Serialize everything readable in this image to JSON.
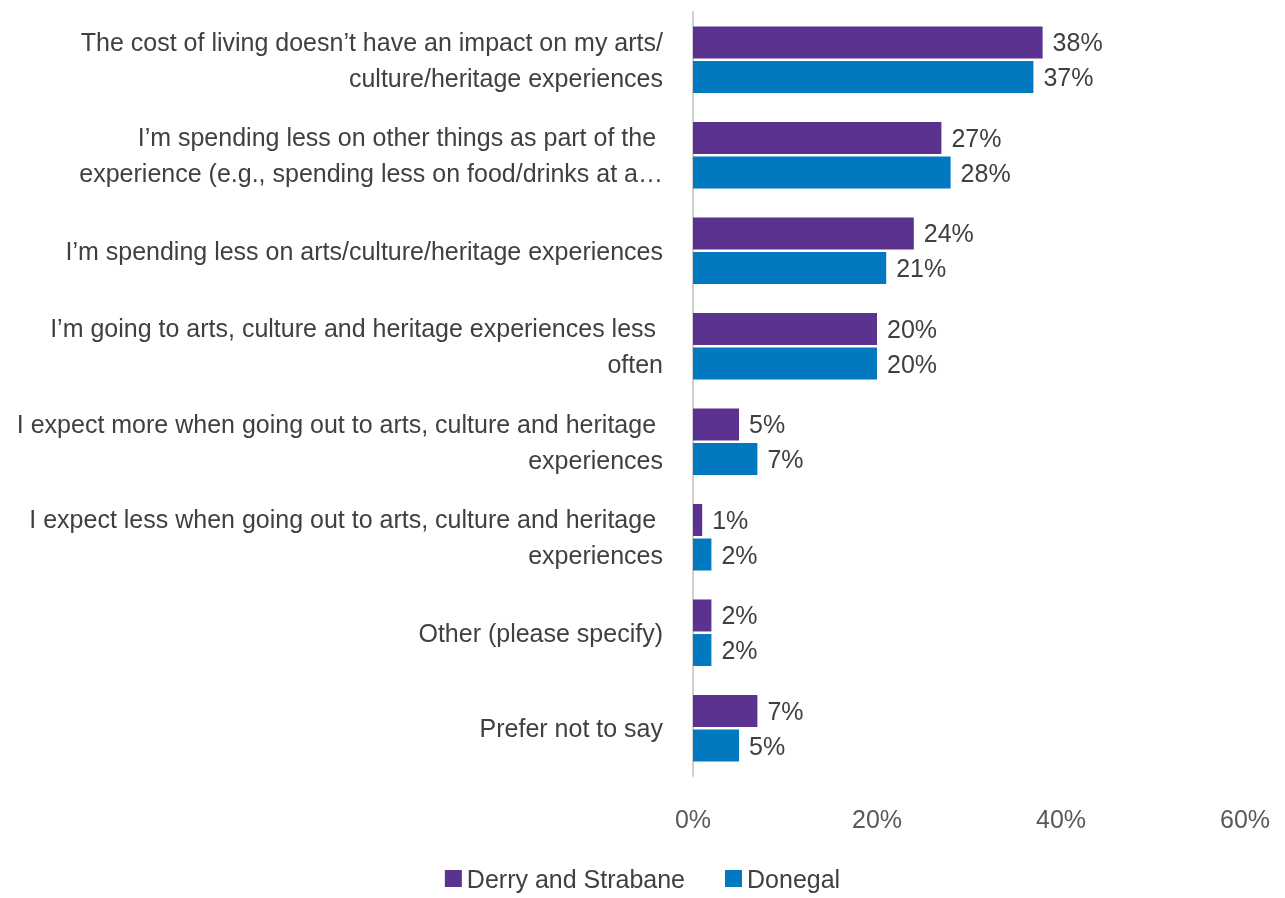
{
  "chart_data": {
    "type": "bar",
    "orientation": "horizontal",
    "categories": [
      "The cost of living doesn’t have an impact on my arts/culture/heritage experiences",
      "I’m spending less on other things as part of the experience (e.g., spending less on food/drinks at a…",
      "I’m spending less on arts/culture/heritage experiences",
      "I’m going to arts, culture and heritage experiences less often",
      "I expect more when going out to arts, culture and heritage experiences",
      "I expect less when going out to arts, culture and heritage experiences",
      "Other (please specify)",
      "Prefer not to say"
    ],
    "series": [
      {
        "name": "Derry and Strabane",
        "color": "#5b3290",
        "values": [
          38,
          27,
          24,
          20,
          5,
          1,
          2,
          7
        ],
        "value_labels": [
          "38%",
          "27%",
          "24%",
          "20%",
          "5%",
          "1%",
          "2%",
          "7%"
        ]
      },
      {
        "name": "Donegal",
        "color": "#0079c1",
        "values": [
          37,
          28,
          21,
          20,
          7,
          2,
          2,
          5
        ],
        "value_labels": [
          "37%",
          "28%",
          "21%",
          "20%",
          "7%",
          "2%",
          "2%",
          "5%"
        ]
      }
    ],
    "xlim": [
      0,
      60
    ],
    "xticks": [
      {
        "value": 0,
        "label": "0%"
      },
      {
        "value": 20,
        "label": "20%"
      },
      {
        "value": 40,
        "label": "40%"
      },
      {
        "value": 60,
        "label": "60%"
      }
    ],
    "legend": "bottom"
  }
}
